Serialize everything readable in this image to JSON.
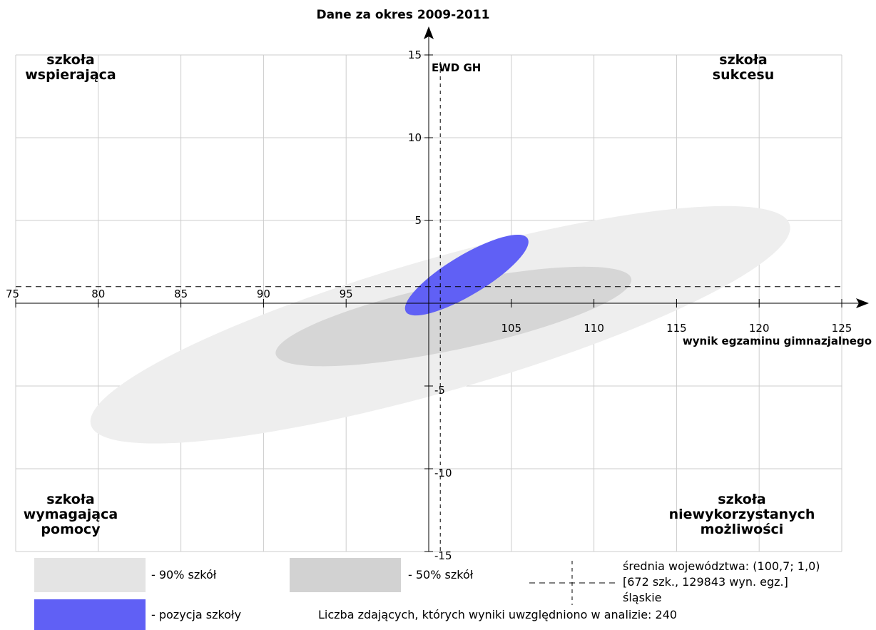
{
  "chart_data": {
    "type": "scatter",
    "title": "Dane za okres 2009-2011",
    "xlabel": "wynik egzaminu gimnazjalnego",
    "ylabel": "EWD GH",
    "xlim": [
      75,
      125
    ],
    "ylim": [
      -15,
      15
    ],
    "x_ticks": [
      75,
      80,
      85,
      90,
      95,
      105,
      110,
      115,
      120,
      125
    ],
    "y_ticks": [
      15,
      10,
      5,
      -5,
      -10,
      -15
    ],
    "grid": true,
    "mean_lines": {
      "x": 100.7,
      "y": 1.0
    },
    "ellipses": [
      {
        "name": "90% szkół",
        "cx": 100.7,
        "cy": -1.3,
        "rx": 22.0,
        "ry": 4.0,
        "angle_deg": -16,
        "color": "#eeeeee"
      },
      {
        "name": "50% szkół",
        "cx": 101.5,
        "cy": -0.8,
        "rx": 11.0,
        "ry": 2.0,
        "angle_deg": -12,
        "color": "#d6d6d6"
      },
      {
        "name": "pozycja szkoły",
        "cx": 102.3,
        "cy": 1.7,
        "rx": 4.3,
        "ry": 1.2,
        "angle_deg": -31,
        "color": "#6060f5"
      }
    ],
    "quadrant_labels": {
      "top_left": [
        "szkoła",
        "wspierająca"
      ],
      "top_right": [
        "szkoła",
        "sukcesu"
      ],
      "bottom_left": [
        "szkoła",
        "wymagająca",
        "pomocy"
      ],
      "bottom_right": [
        "szkoła",
        "niewykorzystanych",
        "możliwości"
      ]
    }
  },
  "legend": {
    "items": [
      {
        "label": "- 90% szkół",
        "color": "#e4e4e4"
      },
      {
        "label": "- 50% szkół",
        "color": "#d2d2d2"
      },
      {
        "label": "- pozycja szkoły",
        "color": "#6060f5"
      }
    ],
    "mean_line1": "średnia województwa: (100,7; 1,0)",
    "mean_line2": "[672 szk., 129843 wyn. egz.]",
    "mean_line3": "śląskie",
    "count_note": "Liczba zdających, których wyniki uwzględniono w analizie: 240"
  }
}
